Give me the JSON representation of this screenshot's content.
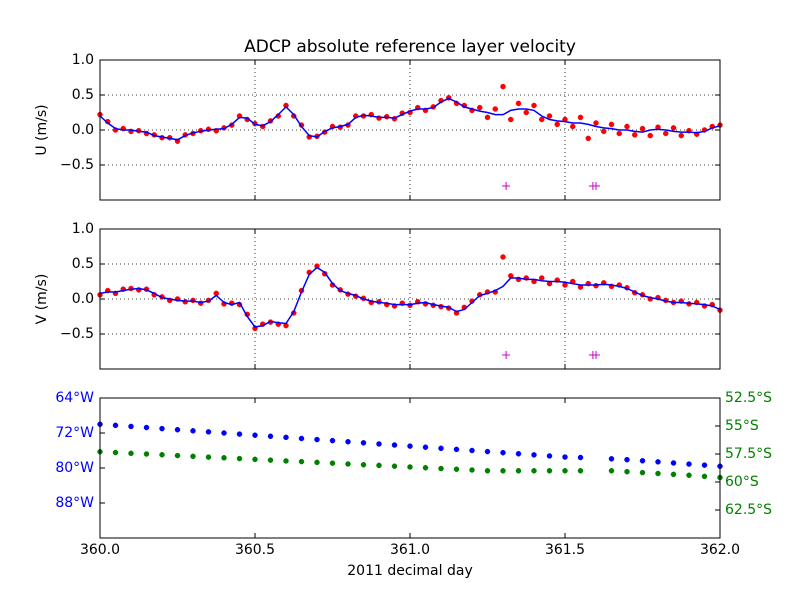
{
  "chart_data": [
    {
      "type": "line",
      "title": "ADCP absolute reference layer velocity",
      "ylabel": "U (m/s)",
      "grid": true,
      "xtick_labels": false,
      "x": [
        360,
        360.025,
        360.05,
        360.075,
        360.1,
        360.125,
        360.15,
        360.175,
        360.2,
        360.225,
        360.25,
        360.275,
        360.3,
        360.325,
        360.35,
        360.375,
        360.4,
        360.425,
        360.45,
        360.475,
        360.5,
        360.525,
        360.55,
        360.575,
        360.6,
        360.625,
        360.65,
        360.675,
        360.7,
        360.725,
        360.75,
        360.775,
        360.8,
        360.825,
        360.85,
        360.875,
        360.9,
        360.925,
        360.95,
        360.975,
        361,
        361.025,
        361.05,
        361.075,
        361.1,
        361.125,
        361.15,
        361.175,
        361.2,
        361.225,
        361.25,
        361.275,
        361.3,
        361.325,
        361.35,
        361.375,
        361.4,
        361.425,
        361.45,
        361.475,
        361.5,
        361.525,
        361.55,
        361.575,
        361.6,
        361.625,
        361.65,
        361.675,
        361.7,
        361.725,
        361.75,
        361.775,
        361.8,
        361.825,
        361.85,
        361.875,
        361.9,
        361.925,
        361.95,
        361.975,
        362
      ],
      "series": [
        {
          "style": "dots",
          "color": "#ff0000",
          "values": [
            0.22,
            0.12,
            0.0,
            0.02,
            -0.02,
            -0.01,
            -0.05,
            -0.07,
            -0.11,
            -0.11,
            -0.16,
            -0.07,
            -0.05,
            -0.01,
            0.01,
            -0.01,
            0.03,
            0.07,
            0.2,
            0.15,
            0.09,
            0.05,
            0.13,
            0.2,
            0.35,
            0.2,
            0.07,
            -0.1,
            -0.09,
            -0.03,
            0.05,
            0.04,
            0.07,
            0.2,
            0.2,
            0.22,
            0.17,
            0.19,
            0.16,
            0.24,
            0.25,
            0.32,
            0.28,
            0.33,
            0.42,
            0.46,
            0.38,
            0.35,
            0.28,
            0.32,
            0.18,
            0.3,
            0.62,
            0.15,
            0.38,
            0.25,
            0.35,
            0.15,
            0.2,
            0.08,
            0.15,
            0.05,
            0.18,
            -0.12,
            0.1,
            -0.02,
            0.08,
            -0.05,
            0.05,
            -0.07,
            0.02,
            -0.08,
            0.04,
            -0.05,
            0.03,
            -0.08,
            -0.01,
            -0.06,
            0.0,
            0.05,
            0.07
          ]
        },
        {
          "style": "line",
          "color": "#0000ff",
          "values": [
            0.2,
            0.1,
            0.02,
            0.0,
            0.0,
            -0.02,
            -0.03,
            -0.08,
            -0.1,
            -0.12,
            -0.14,
            -0.08,
            -0.04,
            -0.02,
            0.0,
            0.01,
            0.02,
            0.08,
            0.18,
            0.17,
            0.08,
            0.06,
            0.12,
            0.22,
            0.33,
            0.22,
            0.05,
            -0.08,
            -0.1,
            -0.02,
            0.03,
            0.05,
            0.08,
            0.18,
            0.21,
            0.2,
            0.18,
            0.18,
            0.17,
            0.22,
            0.27,
            0.3,
            0.3,
            0.32,
            0.4,
            0.45,
            0.4,
            0.33,
            0.3,
            0.27,
            0.25,
            0.22,
            0.22,
            0.28,
            0.3,
            0.3,
            0.28,
            0.2,
            0.15,
            0.13,
            0.12,
            0.1,
            0.1,
            0.08,
            0.05,
            0.03,
            0.02,
            0.0,
            0.0,
            -0.02,
            -0.03,
            0.0,
            0.01,
            0.0,
            -0.02,
            -0.03,
            -0.03,
            -0.04,
            -0.02,
            0.03,
            0.06
          ]
        },
        {
          "style": "plus",
          "color": "#cc00cc",
          "x": [
            361.31,
            361.59,
            361.6
          ],
          "values": [
            -0.8,
            -0.8,
            -0.8
          ]
        }
      ],
      "xlim": [
        360,
        362
      ],
      "xticks": [
        360,
        360.5,
        361,
        361.5,
        362
      ],
      "ylim": [
        -1,
        1
      ],
      "yticks": [
        {
          "value": 1,
          "label": "1.0"
        },
        {
          "value": 0.5,
          "label": "0.5"
        },
        {
          "value": 0,
          "label": "0.0"
        },
        {
          "value": -0.5,
          "label": "−0.5"
        }
      ]
    },
    {
      "type": "line",
      "ylabel": "V (m/s)",
      "grid": true,
      "xtick_labels": false,
      "x": [
        360,
        360.025,
        360.05,
        360.075,
        360.1,
        360.125,
        360.15,
        360.175,
        360.2,
        360.225,
        360.25,
        360.275,
        360.3,
        360.325,
        360.35,
        360.375,
        360.4,
        360.425,
        360.45,
        360.475,
        360.5,
        360.525,
        360.55,
        360.575,
        360.6,
        360.625,
        360.65,
        360.675,
        360.7,
        360.725,
        360.75,
        360.775,
        360.8,
        360.825,
        360.85,
        360.875,
        360.9,
        360.925,
        360.95,
        360.975,
        361,
        361.025,
        361.05,
        361.075,
        361.1,
        361.125,
        361.15,
        361.175,
        361.2,
        361.225,
        361.25,
        361.275,
        361.3,
        361.325,
        361.35,
        361.375,
        361.4,
        361.425,
        361.45,
        361.475,
        361.5,
        361.525,
        361.55,
        361.575,
        361.6,
        361.625,
        361.65,
        361.675,
        361.7,
        361.725,
        361.75,
        361.775,
        361.8,
        361.825,
        361.85,
        361.875,
        361.9,
        361.925,
        361.95,
        361.975,
        362
      ],
      "series": [
        {
          "style": "dots",
          "color": "#ff0000",
          "values": [
            0.06,
            0.12,
            0.08,
            0.14,
            0.15,
            0.13,
            0.14,
            0.06,
            0.03,
            -0.02,
            0.0,
            -0.04,
            -0.02,
            -0.06,
            -0.02,
            0.08,
            -0.07,
            -0.06,
            -0.08,
            -0.22,
            -0.42,
            -0.36,
            -0.33,
            -0.36,
            -0.38,
            -0.2,
            0.12,
            0.38,
            0.47,
            0.36,
            0.2,
            0.13,
            0.07,
            0.04,
            0.01,
            -0.05,
            -0.04,
            -0.08,
            -0.1,
            -0.06,
            -0.09,
            -0.04,
            -0.07,
            -0.09,
            -0.11,
            -0.13,
            -0.2,
            -0.12,
            -0.03,
            0.06,
            0.1,
            0.1,
            0.6,
            0.33,
            0.28,
            0.3,
            0.25,
            0.3,
            0.22,
            0.27,
            0.2,
            0.25,
            0.17,
            0.22,
            0.19,
            0.23,
            0.18,
            0.2,
            0.16,
            0.09,
            0.06,
            0.0,
            0.02,
            -0.02,
            -0.05,
            -0.03,
            -0.07,
            -0.05,
            -0.1,
            -0.08,
            -0.16
          ]
        },
        {
          "style": "line",
          "color": "#0000ff",
          "values": [
            0.08,
            0.1,
            0.1,
            0.12,
            0.14,
            0.15,
            0.13,
            0.08,
            0.02,
            0.0,
            -0.02,
            -0.03,
            -0.03,
            -0.05,
            -0.03,
            0.05,
            -0.05,
            -0.08,
            -0.05,
            -0.25,
            -0.4,
            -0.38,
            -0.32,
            -0.34,
            -0.35,
            -0.18,
            0.1,
            0.35,
            0.45,
            0.38,
            0.22,
            0.12,
            0.08,
            0.05,
            0.0,
            -0.03,
            -0.05,
            -0.06,
            -0.08,
            -0.08,
            -0.08,
            -0.06,
            -0.05,
            -0.08,
            -0.1,
            -0.12,
            -0.18,
            -0.15,
            -0.05,
            0.05,
            0.08,
            0.12,
            0.18,
            0.3,
            0.3,
            0.28,
            0.28,
            0.26,
            0.25,
            0.25,
            0.24,
            0.22,
            0.2,
            0.2,
            0.2,
            0.21,
            0.2,
            0.18,
            0.15,
            0.1,
            0.05,
            0.02,
            0.0,
            -0.03,
            -0.05,
            -0.05,
            -0.06,
            -0.07,
            -0.08,
            -0.1,
            -0.15
          ]
        },
        {
          "style": "plus",
          "color": "#cc00cc",
          "x": [
            361.31,
            361.59,
            361.6
          ],
          "values": [
            -0.8,
            -0.8,
            -0.8
          ]
        }
      ],
      "xlim": [
        360,
        362
      ],
      "xticks": [
        360,
        360.5,
        361,
        361.5,
        362
      ],
      "ylim": [
        -1,
        1
      ],
      "yticks": [
        {
          "value": 1,
          "label": "1.0"
        },
        {
          "value": 0.5,
          "label": "0.5"
        },
        {
          "value": 0,
          "label": "0.0"
        },
        {
          "value": -0.5,
          "label": "−0.5"
        }
      ]
    },
    {
      "type": "line",
      "xlabel": "2011 decimal day",
      "grid": false,
      "xtick_labels": true,
      "yticklabel_color": "#0000ff",
      "y2ticklabel_color": "#008000",
      "x": [
        360,
        360.05,
        360.1,
        360.15,
        360.2,
        360.25,
        360.3,
        360.35,
        360.4,
        360.45,
        360.5,
        360.55,
        360.6,
        360.65,
        360.7,
        360.75,
        360.8,
        360.85,
        360.9,
        360.95,
        361,
        361.05,
        361.1,
        361.15,
        361.2,
        361.25,
        361.3,
        361.35,
        361.4,
        361.45,
        361.5,
        361.55,
        361.6,
        361.65,
        361.7,
        361.75,
        361.8,
        361.85,
        361.9,
        361.95,
        362
      ],
      "series": [
        {
          "style": "dots",
          "color": "#0000ff",
          "values": [
            -70,
            -70.25,
            -70.5,
            -70.75,
            -71,
            -71.25,
            -71.5,
            -71.75,
            -72,
            -72.25,
            -72.5,
            -72.75,
            -73,
            -73.25,
            -73.5,
            -73.75,
            -74,
            -74.25,
            -74.5,
            -74.75,
            -75,
            -75.25,
            -75.5,
            -75.75,
            -76,
            -76.25,
            -76.5,
            -76.75,
            -77,
            -77.25,
            -77.5,
            -77.6,
            null,
            -77.9,
            -78.1,
            -78.35,
            -78.6,
            -78.85,
            -79.1,
            -79.35,
            -79.6
          ]
        },
        {
          "style": "dots",
          "color": "#008000",
          "axis": "y2",
          "values": [
            -57.3,
            -57.37,
            -57.44,
            -57.5,
            -57.57,
            -57.64,
            -57.71,
            -57.78,
            -57.84,
            -57.91,
            -57.98,
            -58.05,
            -58.12,
            -58.18,
            -58.25,
            -58.32,
            -58.39,
            -58.46,
            -58.52,
            -58.59,
            -58.66,
            -58.73,
            -58.8,
            -58.86,
            -58.93,
            -59.0,
            -59.0,
            -59.0,
            -59.0,
            -59.0,
            -59.0,
            -59.0,
            null,
            -59.0,
            -59.08,
            -59.16,
            -59.24,
            -59.32,
            -59.4,
            -59.5,
            -59.6
          ]
        }
      ],
      "xlim": [
        360,
        362
      ],
      "xticks": [
        {
          "value": 360,
          "label": "360.0"
        },
        {
          "value": 360.5,
          "label": "360.5"
        },
        {
          "value": 361,
          "label": "361.0"
        },
        {
          "value": 361.5,
          "label": "361.5"
        },
        {
          "value": 362,
          "label": "362.0"
        }
      ],
      "ylim": [
        -96,
        -64
      ],
      "yticks": [
        {
          "value": -64,
          "label": "64°W"
        },
        {
          "value": -72,
          "label": "72°W"
        },
        {
          "value": -80,
          "label": "80°W"
        },
        {
          "value": -88,
          "label": "88°W"
        }
      ],
      "y2lim": [
        -65,
        -52.5
      ],
      "y2ticks": [
        {
          "value": -52.5,
          "label": "52.5°S"
        },
        {
          "value": -55,
          "label": "55°S"
        },
        {
          "value": -57.5,
          "label": "57.5°S"
        },
        {
          "value": -60,
          "label": "60°S"
        },
        {
          "value": -62.5,
          "label": "62.5°S"
        }
      ]
    }
  ]
}
